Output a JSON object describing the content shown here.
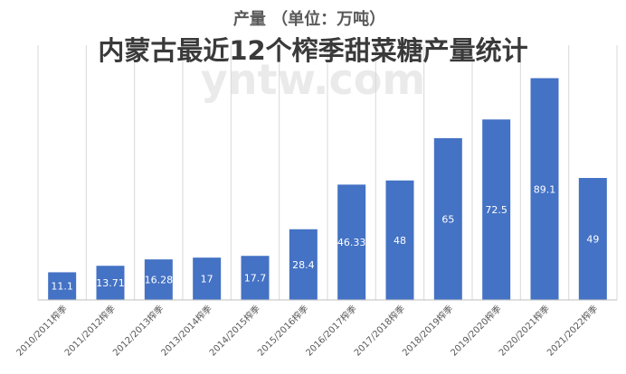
{
  "chart_data": {
    "type": "bar",
    "subtitle": "产量 （单位：万吨）",
    "title": "内蒙古最近12个榨季甜菜糖产量统计",
    "watermark": "yntw.com",
    "categories": [
      "2010/2011榨季",
      "2011/2012榨季",
      "2012/2013榨季",
      "2013/2014榨季",
      "2014/2015榨季",
      "2015/2016榨季",
      "2016/2017榨季",
      "2017/2018榨季",
      "2018/2019榨季",
      "2019/2020榨季",
      "2020/2021榨季",
      "2021/2022榨季"
    ],
    "values": [
      11.1,
      13.71,
      16.28,
      17,
      17.7,
      28.4,
      46.33,
      48,
      65,
      72.5,
      89.1,
      49
    ],
    "value_labels": [
      "11.1",
      "13.71",
      "16.28",
      "17",
      "17.7",
      "28.4",
      "46.33",
      "48",
      "65",
      "72.5",
      "89.1",
      "49"
    ],
    "ylim": [
      0,
      100
    ],
    "grid": "vertical",
    "legend": "none",
    "colors": {
      "bar": "#4472c4",
      "grid": "#d9d9d9"
    }
  }
}
